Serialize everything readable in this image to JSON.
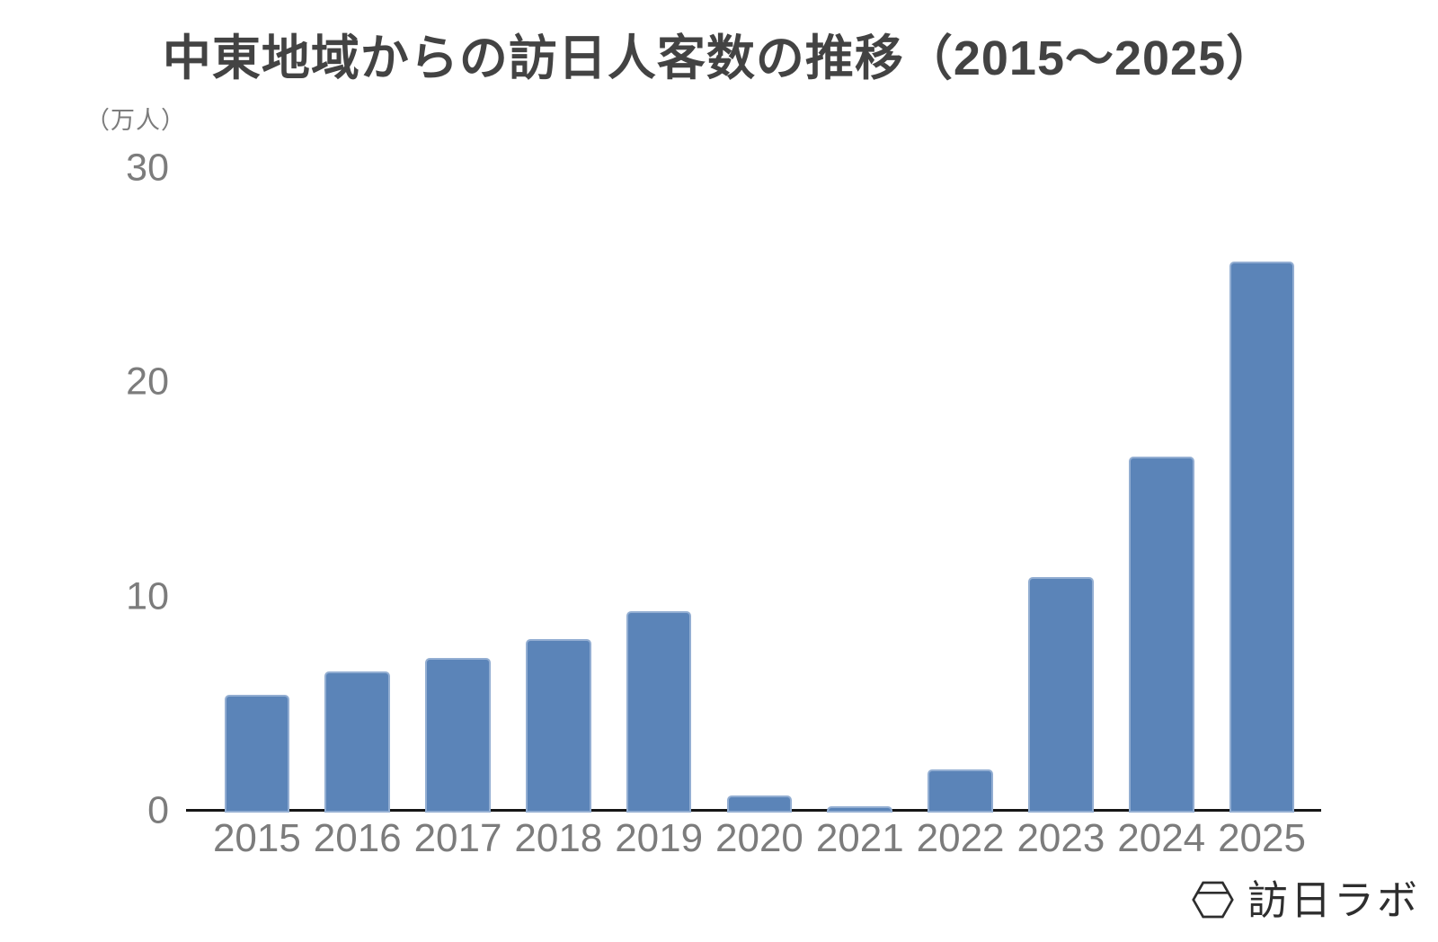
{
  "page": {
    "background": "#ffffff"
  },
  "chart_data": {
    "type": "bar",
    "title": "中東地域からの訪日人客数の推移（2015～2025）",
    "unit_label": "（万人）",
    "categories": [
      "2015",
      "2016",
      "2017",
      "2018",
      "2019",
      "2020",
      "2021",
      "2022",
      "2023",
      "2024",
      "2025"
    ],
    "values": [
      5.5,
      6.6,
      7.2,
      8.1,
      9.4,
      0.8,
      0.3,
      2.0,
      11.0,
      16.6,
      25.7
    ],
    "xlabel": "",
    "ylabel": "（万人）",
    "ylim": [
      0,
      30
    ],
    "yticks": [
      0,
      10,
      20,
      30
    ],
    "grid": false,
    "legend_position": "none",
    "bar_color": "#5b84b8",
    "bar_border_color": "#93aed2",
    "axis_color": "#161616",
    "tick_label_color": "#7c7c7c",
    "title_color": "#434343"
  },
  "branding": {
    "logo_text": "訪日ラボ",
    "logo_icon": "hexagon-icon",
    "logo_color": "#2e2e2e"
  }
}
